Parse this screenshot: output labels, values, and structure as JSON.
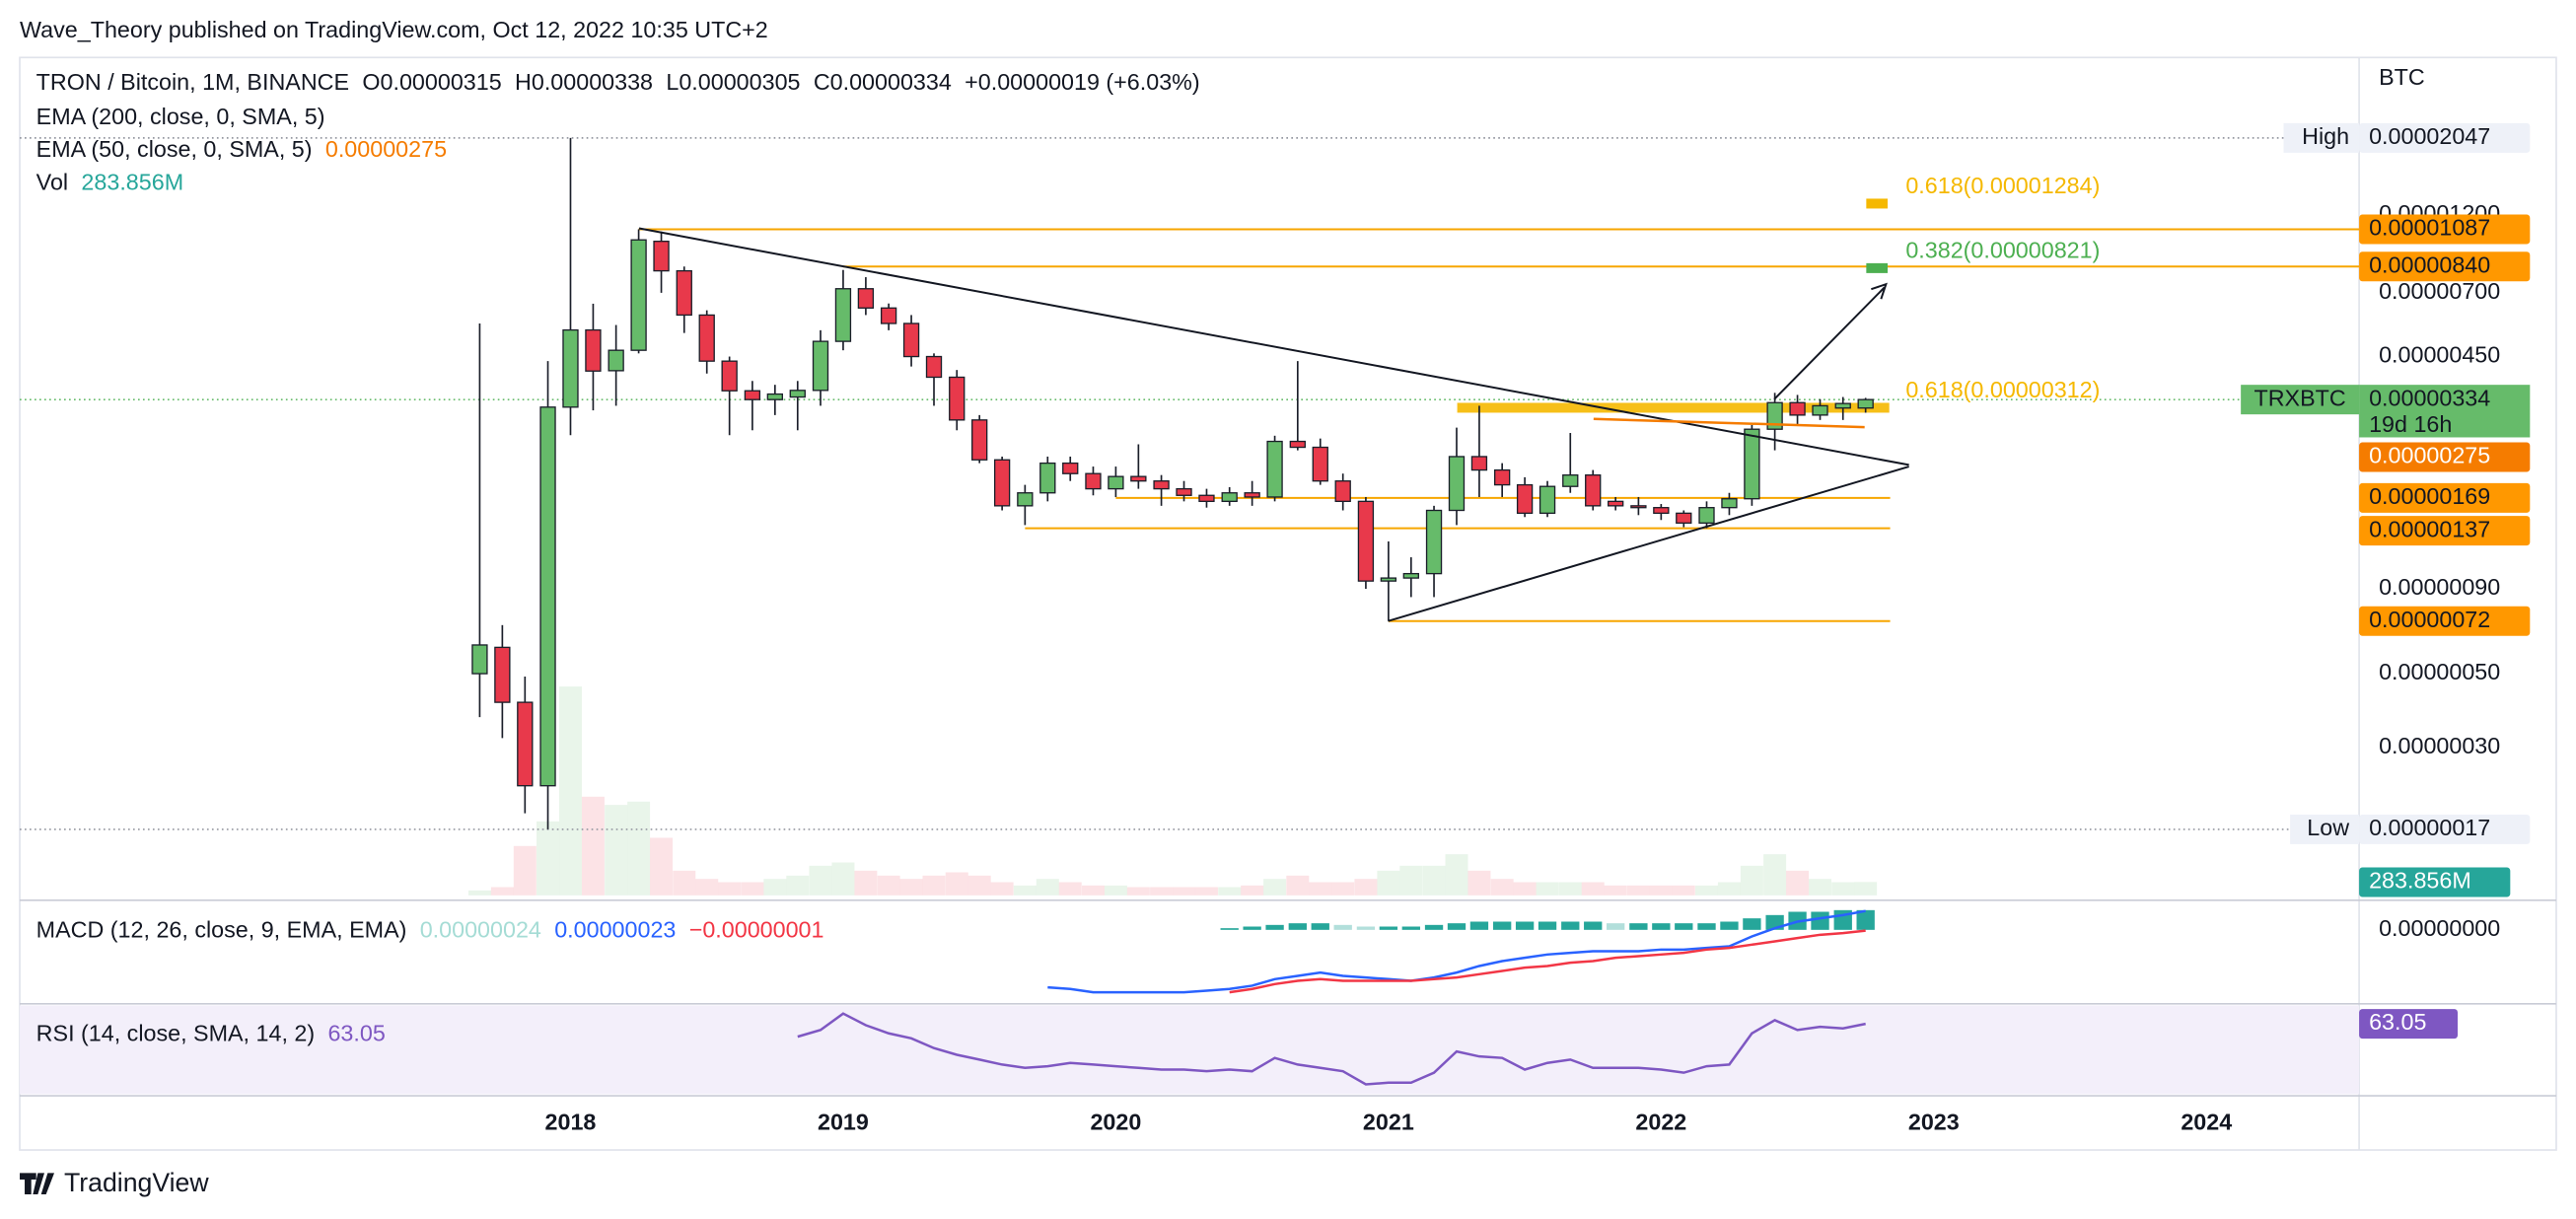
{
  "header": {
    "published": "Wave_Theory published on TradingView.com, Oct 12, 2022 10:35 UTC+2"
  },
  "footer": {
    "brand": "TradingView"
  },
  "chart_data": {
    "type": "candlestick",
    "title": "TRON / Bitcoin, 1M, BINANCE",
    "ohlc_legend": [
      "O0.00000315",
      "H0.00000338",
      "L0.00000305",
      "C0.00000334",
      "+0.00000019 (+6.03%)"
    ],
    "indicators": [
      "EMA (200, close, 0, SMA, 5)",
      "EMA (50, close, 0, SMA, 5)"
    ],
    "currency": "BTC",
    "log_scale": true,
    "grid": false,
    "up_color": "#66bb6a",
    "down_color": "#e8394b",
    "x": [
      2017.667,
      2017.75,
      2017.833,
      2017.917,
      2018,
      2018.083,
      2018.167,
      2018.25,
      2018.333,
      2018.417,
      2018.5,
      2018.583,
      2018.667,
      2018.75,
      2018.833,
      2018.917,
      2019,
      2019.083,
      2019.167,
      2019.25,
      2019.333,
      2019.417,
      2019.5,
      2019.583,
      2019.667,
      2019.75,
      2019.833,
      2019.917,
      2020,
      2020.083,
      2020.167,
      2020.25,
      2020.333,
      2020.417,
      2020.5,
      2020.583,
      2020.667,
      2020.75,
      2020.833,
      2020.917,
      2021,
      2021.083,
      2021.167,
      2021.25,
      2021.333,
      2021.417,
      2021.5,
      2021.583,
      2021.667,
      2021.75,
      2021.833,
      2021.917,
      2022,
      2022.083,
      2022.167,
      2022.25,
      2022.333,
      2022.417,
      2022.5,
      2022.583,
      2022.667,
      2022.75
    ],
    "open": [
      5e-07,
      6e-07,
      4.1e-07,
      2.3e-07,
      3.17e-06,
      5.41e-06,
      4.08e-06,
      4.7e-06,
      1e-05,
      8.15e-06,
      6e-06,
      4.36e-06,
      3.55e-06,
      3.34e-06,
      3.4e-06,
      3.56e-06,
      5e-06,
      7.2e-06,
      6.3e-06,
      5.66e-06,
      4.5e-06,
      3.9e-06,
      2.9e-06,
      2.2e-06,
      1.6e-06,
      1.75e-06,
      2.15e-06,
      2e-06,
      1.8e-06,
      1.96e-06,
      1.9e-06,
      1.8e-06,
      1.72e-06,
      1.65e-06,
      1.75e-06,
      1.7e-06,
      2.5e-06,
      2.4e-06,
      1.9e-06,
      1.65e-06,
      9.5e-07,
      9.7e-07,
      1e-06,
      1.55e-06,
      2.25e-06,
      2.05e-06,
      1.85e-06,
      1.52e-06,
      1.83e-06,
      1.98e-06,
      1.65e-06,
      1.6e-06,
      1.58e-06,
      1.52e-06,
      1.42e-06,
      1.58e-06,
      1.68e-06,
      2.72e-06,
      3.27e-06,
      3e-06,
      3.15e-06,
      3.15e-06
    ],
    "high": [
      5.66e-06,
      7e-07,
      4.9e-07,
      4.36e-06,
      2.047e-05,
      6.49e-06,
      5.6e-06,
      1.087e-05,
      1.07e-05,
      8.4e-06,
      6.2e-06,
      4.5e-06,
      3.8e-06,
      3.7e-06,
      3.8e-06,
      5.4e-06,
      8.2e-06,
      7.8e-06,
      6.5e-06,
      6e-06,
      4.6e-06,
      4.1e-06,
      3e-06,
      2.25e-06,
      1.85e-06,
      2.25e-06,
      2.25e-06,
      2.1e-06,
      2.1e-06,
      2.45e-06,
      1.98e-06,
      1.9e-06,
      1.8e-06,
      1.82e-06,
      1.9e-06,
      2.6e-06,
      4.36e-06,
      2.55e-06,
      2e-06,
      1.7e-06,
      1.25e-06,
      1.12e-06,
      1.6e-06,
      2.75e-06,
      3.2e-06,
      2.15e-06,
      1.95e-06,
      1.9e-06,
      2.65e-06,
      2.05e-06,
      1.7e-06,
      1.7e-06,
      1.62e-06,
      1.55e-06,
      1.65e-06,
      1.75e-06,
      2.8e-06,
      3.5e-06,
      3.45e-06,
      3.35e-06,
      3.4e-06,
      3.38e-06
    ],
    "low": [
      3.7e-07,
      3.2e-07,
      1.9e-07,
      1.7e-07,
      2.61e-06,
      3.1e-06,
      3.2e-06,
      4.6e-06,
      7e-06,
      5.3e-06,
      4e-06,
      2.61e-06,
      2.7e-06,
      3e-06,
      2.7e-06,
      3.2e-06,
      4.7e-06,
      6e-06,
      5.4e-06,
      4.2e-06,
      3.2e-06,
      2.7e-06,
      2.15e-06,
      1.55e-06,
      1.4e-06,
      1.65e-06,
      1.9e-06,
      1.72e-06,
      1.7e-06,
      1.8e-06,
      1.6e-06,
      1.65e-06,
      1.58e-06,
      1.6e-06,
      1.6e-06,
      1.65e-06,
      2.35e-06,
      1.85e-06,
      1.55e-06,
      9e-07,
      7.2e-07,
      8.5e-07,
      8.5e-07,
      1.4e-06,
      1.7e-06,
      1.7e-06,
      1.48e-06,
      1.48e-06,
      1.75e-06,
      1.55e-06,
      1.55e-06,
      1.5e-06,
      1.45e-06,
      1.38e-06,
      1.37e-06,
      1.5e-06,
      1.6e-06,
      2.35e-06,
      2.8e-06,
      2.9e-06,
      2.9e-06,
      3.05e-06
    ],
    "close": [
      6.1e-07,
      4.1e-07,
      2.3e-07,
      3.17e-06,
      5.41e-06,
      4.07e-06,
      4.7e-06,
      1.01e-05,
      8.15e-06,
      6e-06,
      4.36e-06,
      3.55e-06,
      3.34e-06,
      3.47e-06,
      3.56e-06,
      5e-06,
      7.2e-06,
      6.3e-06,
      5.66e-06,
      4.5e-06,
      3.9e-06,
      2.9e-06,
      2.2e-06,
      1.6e-06,
      1.75e-06,
      2.15e-06,
      2e-06,
      1.8e-06,
      1.96e-06,
      1.9e-06,
      1.8e-06,
      1.72e-06,
      1.65e-06,
      1.75e-06,
      1.7e-06,
      2.5e-06,
      2.4e-06,
      1.9e-06,
      1.65e-06,
      9.5e-07,
      9.7e-07,
      1e-06,
      1.55e-06,
      2.25e-06,
      2.05e-06,
      1.85e-06,
      1.52e-06,
      1.83e-06,
      1.98e-06,
      1.6e-06,
      1.6e-06,
      1.58e-06,
      1.52e-06,
      1.42e-06,
      1.58e-06,
      1.68e-06,
      2.72e-06,
      3.27e-06,
      3e-06,
      3.2e-06,
      3.25e-06,
      3.34e-06
    ],
    "ylim": [
      1.04e-07,
      3.574e-05
    ],
    "yticks": [
      {
        "value": 1.2e-05,
        "label": "0.00001200"
      },
      {
        "value": 7e-06,
        "label": "0.00000700"
      },
      {
        "value": 4.5e-06,
        "label": "0.00000450"
      },
      {
        "value": 9e-07,
        "label": "0.00000090"
      },
      {
        "value": 5e-07,
        "label": "0.00000050"
      },
      {
        "value": 3e-07,
        "label": "0.00000030"
      }
    ],
    "xlim": [
      2015.98,
      2024.56
    ],
    "xticks": [
      2018,
      2019,
      2020,
      2021,
      2022,
      2023,
      2024
    ],
    "price_levels": [
      {
        "value": 1.087e-05,
        "label": "0.00001087",
        "start": 2018.25
      },
      {
        "value": 8.4e-06,
        "label": "0.00000840",
        "start": 2019.0
      },
      {
        "value": 1.69e-06,
        "label": "0.00000169",
        "start": 2020.0,
        "end": 2022.84
      },
      {
        "value": 1.37e-06,
        "label": "0.00000137",
        "start": 2019.667,
        "end": 2022.84
      },
      {
        "value": 7.2e-07,
        "label": "0.00000072",
        "start": 2021.0,
        "end": 2022.84
      }
    ],
    "level_color": "#f7a600",
    "high_marker": {
      "label": "High",
      "value": 2.047e-05,
      "value_label": "0.00002047"
    },
    "low_marker": {
      "label": "Low",
      "value": 1.7e-07,
      "value_label": "0.00000017"
    },
    "last_price": {
      "symbol": "TRXBTC",
      "value": 3.34e-06,
      "label": "0.00000334",
      "countdown": "19d 16h"
    },
    "ema50": {
      "value": 2.75e-06,
      "label": "0.00000275",
      "color": "#f57c00"
    },
    "fib": [
      {
        "text": "0.618(0.00001284)",
        "value": 1.284e-05,
        "color": "#f5b800"
      },
      {
        "text": "0.382(0.00000821)",
        "value": 8.21e-06,
        "color": "#4caf50"
      },
      {
        "text": "0.618(0.00000312)",
        "value": 3.12e-06,
        "color": "#f5b800"
      }
    ],
    "volume": {
      "label": "Vol",
      "values": [
        105000000.0,
        175000000.0,
        1050000000.0,
        1575000000.0,
        4445000000.0,
        2100000000.0,
        1925000000.0,
        1995000000.0,
        1225000000.0,
        525000000.0,
        350000000.0,
        280000000.0,
        280000000.0,
        350000000.0,
        420000000.0,
        630000000.0,
        700000000.0,
        525000000.0,
        420000000.0,
        350000000.0,
        420000000.0,
        490000000.0,
        420000000.0,
        280000000.0,
        210000000.0,
        350000000.0,
        280000000.0,
        210000000.0,
        210000000.0,
        175000000.0,
        175000000.0,
        175000000.0,
        175000000.0,
        175000000.0,
        210000000.0,
        350000000.0,
        420000000.0,
        280000000.0,
        280000000.0,
        350000000.0,
        525000000.0,
        630000000.0,
        630000000.0,
        875000000.0,
        525000000.0,
        350000000.0,
        280000000.0,
        280000000.0,
        280000000.0,
        280000000.0,
        210000000.0,
        210000000.0,
        210000000.0,
        210000000.0,
        210000000.0,
        280000000.0,
        630000000.0,
        875000000.0,
        525000000.0,
        350000000.0,
        280000000.0,
        283856000.0
      ],
      "value_label": "283.856M",
      "ylim": [
        0,
        5000000000.0
      ],
      "color": "#26a69a"
    },
    "macd": {
      "label": "MACD (12, 26, close, 9, EMA, EMA)",
      "legend_values": [
        "0.00000024",
        "0.00000023",
        "−0.00000001"
      ],
      "ylim": [
        -8.8e-07,
        3.4e-07
      ],
      "yticks": [
        {
          "value": 0,
          "label": "0.00000000"
        }
      ],
      "histogram": [
        null,
        null,
        null,
        null,
        null,
        null,
        null,
        null,
        null,
        null,
        null,
        null,
        null,
        null,
        null,
        null,
        null,
        null,
        null,
        null,
        null,
        null,
        null,
        null,
        null,
        null,
        null,
        null,
        null,
        null,
        null,
        null,
        null,
        2e-08,
        4e-08,
        6e-08,
        8e-08,
        8e-08,
        6e-08,
        4e-08,
        4e-08,
        4e-08,
        6e-08,
        8e-08,
        1e-07,
        1e-07,
        1e-07,
        1e-07,
        1e-07,
        1e-07,
        8e-08,
        8e-08,
        8e-08,
        8e-08,
        8e-08,
        1e-07,
        1.4e-07,
        1.8e-07,
        2.2e-07,
        2.2e-07,
        2.4e-07,
        2.4e-07
      ],
      "macd_line": [
        null,
        null,
        null,
        null,
        null,
        null,
        null,
        null,
        null,
        null,
        null,
        null,
        null,
        null,
        null,
        null,
        null,
        null,
        null,
        null,
        null,
        null,
        null,
        null,
        null,
        -7e-07,
        -7.2e-07,
        -7.6e-07,
        -7.6e-07,
        -7.6e-07,
        -7.6e-07,
        -7.6e-07,
        -7.4e-07,
        -7.2e-07,
        -6.8e-07,
        -6e-07,
        -5.6e-07,
        -5.2e-07,
        -5.6e-07,
        -5.8e-07,
        -6e-07,
        -6.2e-07,
        -5.8e-07,
        -5.2e-07,
        -4.4e-07,
        -3.8e-07,
        -3.4e-07,
        -3e-07,
        -2.8e-07,
        -2.6e-07,
        -2.6e-07,
        -2.6e-07,
        -2.4e-07,
        -2.4e-07,
        -2.2e-07,
        -2e-07,
        -8e-08,
        2e-08,
        1e-07,
        1.4e-07,
        1.8e-07,
        2.3e-07
      ],
      "signal": [
        null,
        null,
        null,
        null,
        null,
        null,
        null,
        null,
        null,
        null,
        null,
        null,
        null,
        null,
        null,
        null,
        null,
        null,
        null,
        null,
        null,
        null,
        null,
        null,
        null,
        null,
        null,
        null,
        null,
        null,
        null,
        null,
        null,
        -7.6e-07,
        -7.2e-07,
        -6.6e-07,
        -6.2e-07,
        -6e-07,
        -6.2e-07,
        -6.2e-07,
        -6.2e-07,
        -6.2e-07,
        -6e-07,
        -5.8e-07,
        -5.4e-07,
        -5e-07,
        -4.6e-07,
        -4.4e-07,
        -4e-07,
        -3.8e-07,
        -3.4e-07,
        -3.2e-07,
        -3e-07,
        -2.8e-07,
        -2.4e-07,
        -2.2e-07,
        -1.8e-07,
        -1.4e-07,
        -1e-07,
        -6e-08,
        -4e-08,
        -1e-08
      ],
      "colors": [
        "#26a69a",
        "#2962ff",
        "#f23645"
      ],
      "hist_light": "#b2dfdb"
    },
    "rsi": {
      "label": "RSI (14, close, SMA, 14, 2)",
      "value_label": "63.05",
      "ylim": [
        25,
        73
      ],
      "color": "#7e57c2",
      "values": [
        null,
        null,
        null,
        null,
        null,
        null,
        null,
        null,
        null,
        null,
        null,
        null,
        null,
        null,
        56.1,
        59.7,
        68.6,
        62.3,
        57.9,
        55.2,
        49.9,
        46.3,
        43.7,
        41.0,
        39.2,
        40.1,
        41.9,
        41.0,
        40.1,
        39.2,
        38.3,
        38.3,
        37.4,
        38.3,
        37.4,
        44.6,
        41.0,
        39.2,
        37.4,
        30.3,
        31.2,
        31.2,
        36.6,
        48.1,
        45.4,
        44.6,
        38.3,
        41.9,
        43.7,
        39.2,
        39.2,
        39.2,
        38.3,
        36.6,
        40.1,
        41.0,
        57.9,
        65.0,
        59.7,
        61.4,
        60.6,
        63.05
      ]
    }
  }
}
